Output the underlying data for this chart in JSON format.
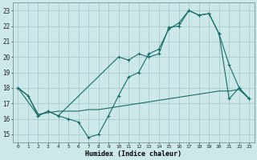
{
  "xlabel": "Humidex (Indice chaleur)",
  "background_color": "#cce8e8",
  "grid_color": "#aacccc",
  "line_color": "#1a6b6b",
  "xlim": [
    -0.5,
    23.5
  ],
  "ylim": [
    14.5,
    23.5
  ],
  "xticks": [
    0,
    1,
    2,
    3,
    4,
    5,
    6,
    7,
    8,
    9,
    10,
    11,
    12,
    13,
    14,
    15,
    16,
    17,
    18,
    19,
    20,
    21,
    22,
    23
  ],
  "yticks": [
    15,
    16,
    17,
    18,
    19,
    20,
    21,
    22,
    23
  ],
  "line1_x": [
    0,
    1,
    2,
    3,
    4,
    5,
    6,
    7,
    8,
    9,
    10,
    11,
    12,
    13,
    14,
    15,
    16,
    17,
    18,
    19,
    20,
    21,
    22,
    23
  ],
  "line1_y": [
    18,
    17.5,
    16.2,
    16.5,
    16.2,
    16.0,
    15.8,
    14.8,
    15.0,
    16.2,
    17.5,
    18.7,
    19.0,
    20.2,
    20.5,
    21.8,
    22.2,
    23.0,
    22.7,
    22.8,
    21.5,
    19.5,
    18.0,
    17.3
  ],
  "line2_x": [
    0,
    2,
    3,
    4,
    10,
    11,
    12,
    13,
    14,
    15,
    16,
    17,
    18,
    19,
    20,
    21,
    22,
    23
  ],
  "line2_y": [
    18,
    16.2,
    16.5,
    16.2,
    20.0,
    19.8,
    20.2,
    20.0,
    20.2,
    21.9,
    22.0,
    23.0,
    22.7,
    22.8,
    21.5,
    17.3,
    18.0,
    17.3
  ],
  "line3_x": [
    0,
    1,
    2,
    3,
    4,
    5,
    6,
    7,
    8,
    9,
    10,
    11,
    12,
    13,
    14,
    15,
    16,
    17,
    18,
    19,
    20,
    21,
    22,
    23
  ],
  "line3_y": [
    18,
    17.5,
    16.3,
    16.4,
    16.5,
    16.5,
    16.5,
    16.6,
    16.6,
    16.7,
    16.8,
    16.9,
    17.0,
    17.1,
    17.2,
    17.3,
    17.4,
    17.5,
    17.6,
    17.7,
    17.8,
    17.8,
    17.9,
    17.3
  ]
}
